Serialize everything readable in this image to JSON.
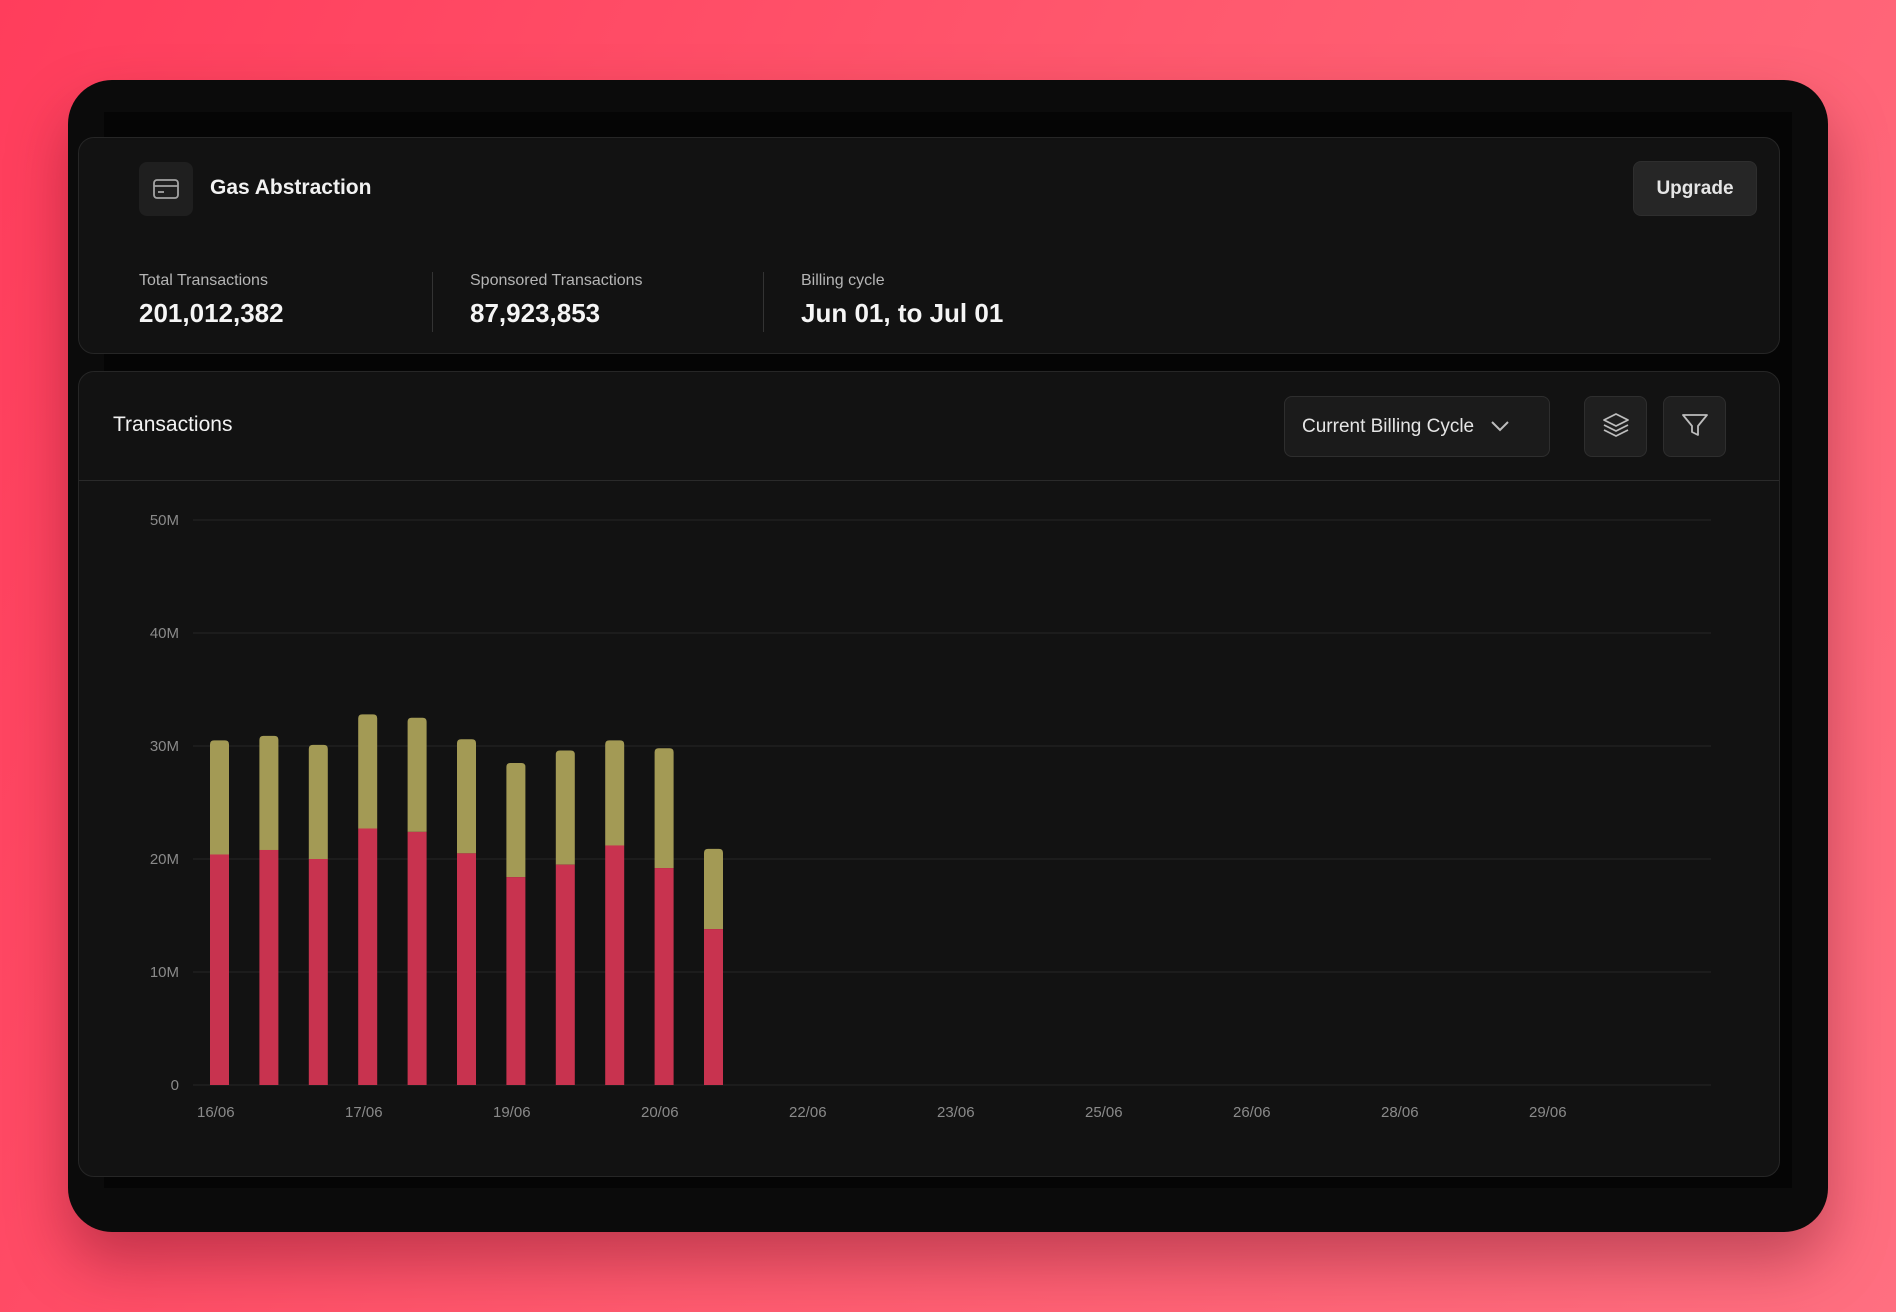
{
  "header": {
    "title": "Gas Abstraction",
    "upgrade_label": "Upgrade",
    "icon": "credit-card-icon"
  },
  "stats": [
    {
      "label": "Total Transactions",
      "value": "201,012,382"
    },
    {
      "label": "Sponsored Transactions",
      "value": "87,923,853"
    },
    {
      "label": "Billing cycle",
      "value": "Jun 01, to Jul 01"
    }
  ],
  "transactions": {
    "title": "Transactions",
    "range_selected": "Current Billing Cycle",
    "icons": [
      "chevron-down-icon",
      "layers-icon",
      "filter-icon"
    ]
  },
  "colors": {
    "series_bottom": "#c8334f",
    "series_top": "#a39a55",
    "background": "#121212"
  },
  "chart_data": {
    "type": "bar",
    "stacked": true,
    "y_ticks": [
      "0",
      "10M",
      "20M",
      "30M",
      "40M",
      "50M"
    ],
    "ylim": [
      0,
      50000000
    ],
    "x_tick_labels": [
      "16/06",
      "17/06",
      "19/06",
      "20/06",
      "22/06",
      "23/06",
      "25/06",
      "26/06",
      "28/06",
      "29/06"
    ],
    "grid": true,
    "series": [
      {
        "values": [
          20400000,
          20800000,
          20000000,
          22700000,
          22400000,
          20500000,
          18400000,
          19500000,
          21200000,
          19200000,
          13800000
        ]
      },
      {
        "values": [
          10100000,
          10100000,
          10100000,
          10100000,
          10100000,
          10100000,
          10100000,
          10100000,
          9300000,
          10600000,
          7100000
        ]
      }
    ]
  }
}
